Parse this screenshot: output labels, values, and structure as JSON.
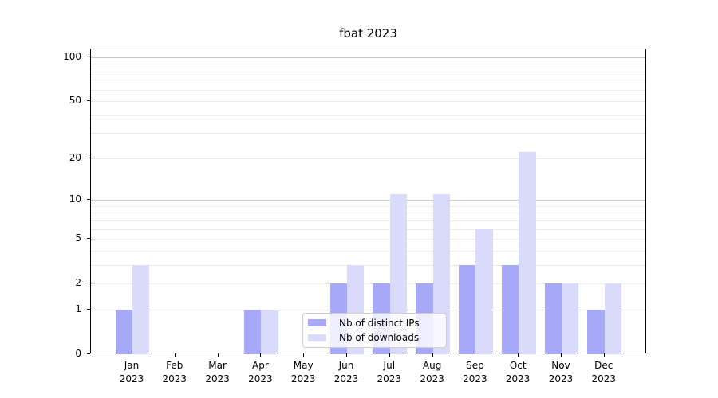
{
  "title": "fbat 2023",
  "chart_data": {
    "type": "bar",
    "title": "fbat 2023",
    "categories": [
      "Jan 2023",
      "Feb 2023",
      "Mar 2023",
      "Apr 2023",
      "May 2023",
      "Jun 2023",
      "Jul 2023",
      "Aug 2023",
      "Sep 2023",
      "Oct 2023",
      "Nov 2023",
      "Dec 2023"
    ],
    "series": [
      {
        "name": "Nb of distinct IPs",
        "color": "#a8a8f8",
        "values": [
          1,
          0,
          0,
          1,
          0,
          2,
          2,
          2,
          3,
          3,
          2,
          1
        ]
      },
      {
        "name": "Nb of downloads",
        "color": "#dadafb",
        "values": [
          3,
          0,
          0,
          1,
          0,
          3,
          11,
          11,
          6,
          22,
          2,
          2
        ]
      }
    ],
    "xlabel": "",
    "ylabel": "",
    "yscale": "log1p",
    "ylim": [
      0,
      113
    ],
    "yticks": [
      0,
      1,
      2,
      5,
      10,
      20,
      50,
      100
    ],
    "grid": true,
    "minor_gridlines": [
      2,
      3,
      4,
      5,
      6,
      7,
      8,
      9,
      20,
      30,
      40,
      50,
      60,
      70,
      80,
      90
    ],
    "major_gridlines": [
      1,
      10,
      100
    ],
    "legend_position": "inside lower center"
  },
  "colors": {
    "bar_distinct_ips": "#a8a8f8",
    "bar_downloads": "#dadafb",
    "grid_minor": "#ebebeb",
    "grid_major": "#c8c8c8",
    "axis": "#000000",
    "legend_border": "#cccccc",
    "background": "#ffffff"
  }
}
